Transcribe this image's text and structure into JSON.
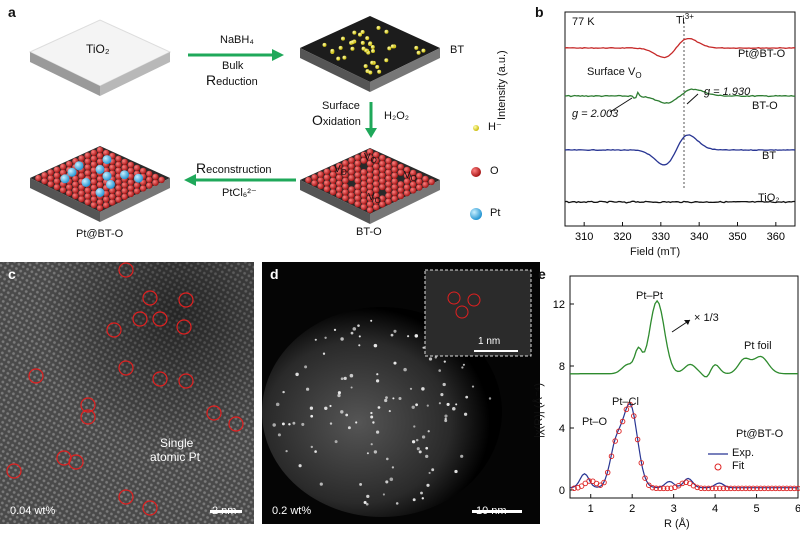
{
  "panel_a": {
    "letter": "a",
    "tio2": "TiO₂",
    "step1_reagent": "NaBH₄",
    "step1_name_line1": "Bulk",
    "step1_name_line2_big": "R",
    "step1_name_line2_rest": "eduction",
    "bt": "BT",
    "step2_line1": "Surface",
    "step2_line2_big": "O",
    "step2_line2_rest": "xidation",
    "step2_reagent": "H₂O₂",
    "step3_big": "R",
    "step3_rest": "econstruction",
    "step3_reagent": "PtCl₆²⁻",
    "bto": "BT-O",
    "ptbto": "Pt@BT-O",
    "vo_label": "V",
    "vo_sub": "O",
    "legend": [
      {
        "label": "H⁻",
        "color": "#e8e14a"
      },
      {
        "label": "O",
        "color": "#c41a1a"
      },
      {
        "label": "Pt",
        "color": "#29a9e0"
      }
    ]
  },
  "panel_b": {
    "letter": "b",
    "temp": "77 K",
    "ti_label": "Ti",
    "ti_sup": "3+",
    "surface_vo": "Surface V",
    "surface_vo_sub": "O",
    "g1": "g = 1.930",
    "g2": "g = 2.003",
    "ylabel": "Intensity (a.u.)",
    "xlabel": "Field (mT)",
    "ticks": [
      "310",
      "320",
      "330",
      "340",
      "350",
      "360"
    ],
    "series": [
      {
        "name": "Pt@BT-O",
        "color": "#c62828"
      },
      {
        "name": "BT-O",
        "color": "#2e7d32"
      },
      {
        "name": "BT",
        "color": "#283593"
      },
      {
        "name": "TiO₂",
        "color": "#111111"
      }
    ]
  },
  "panel_c": {
    "letter": "c",
    "label_line1": "Single",
    "label_line2": "atomic Pt",
    "loading": "0.04 wt%",
    "scale": "2 nm"
  },
  "panel_d": {
    "letter": "d",
    "loading": "0.2 wt%",
    "scale": "10 nm",
    "inset_scale": "1 nm"
  },
  "panel_e": {
    "letter": "e",
    "ylabel": "|χ(R)| (Å⁻⁴)",
    "xlabel": "R (Å)",
    "xticks": [
      "1",
      "2",
      "3",
      "4",
      "5",
      "6"
    ],
    "yticks": [
      "0",
      "4",
      "8",
      "12"
    ],
    "ptpt": "Pt–Pt",
    "scale_note": "× 1/3",
    "ptfoil": "Pt foil",
    "pto": "Pt–O",
    "ptcl": "Pt–Cl",
    "sample": "Pt@BT-O",
    "legend_exp": "Exp.",
    "legend_fit": "Fit"
  }
}
